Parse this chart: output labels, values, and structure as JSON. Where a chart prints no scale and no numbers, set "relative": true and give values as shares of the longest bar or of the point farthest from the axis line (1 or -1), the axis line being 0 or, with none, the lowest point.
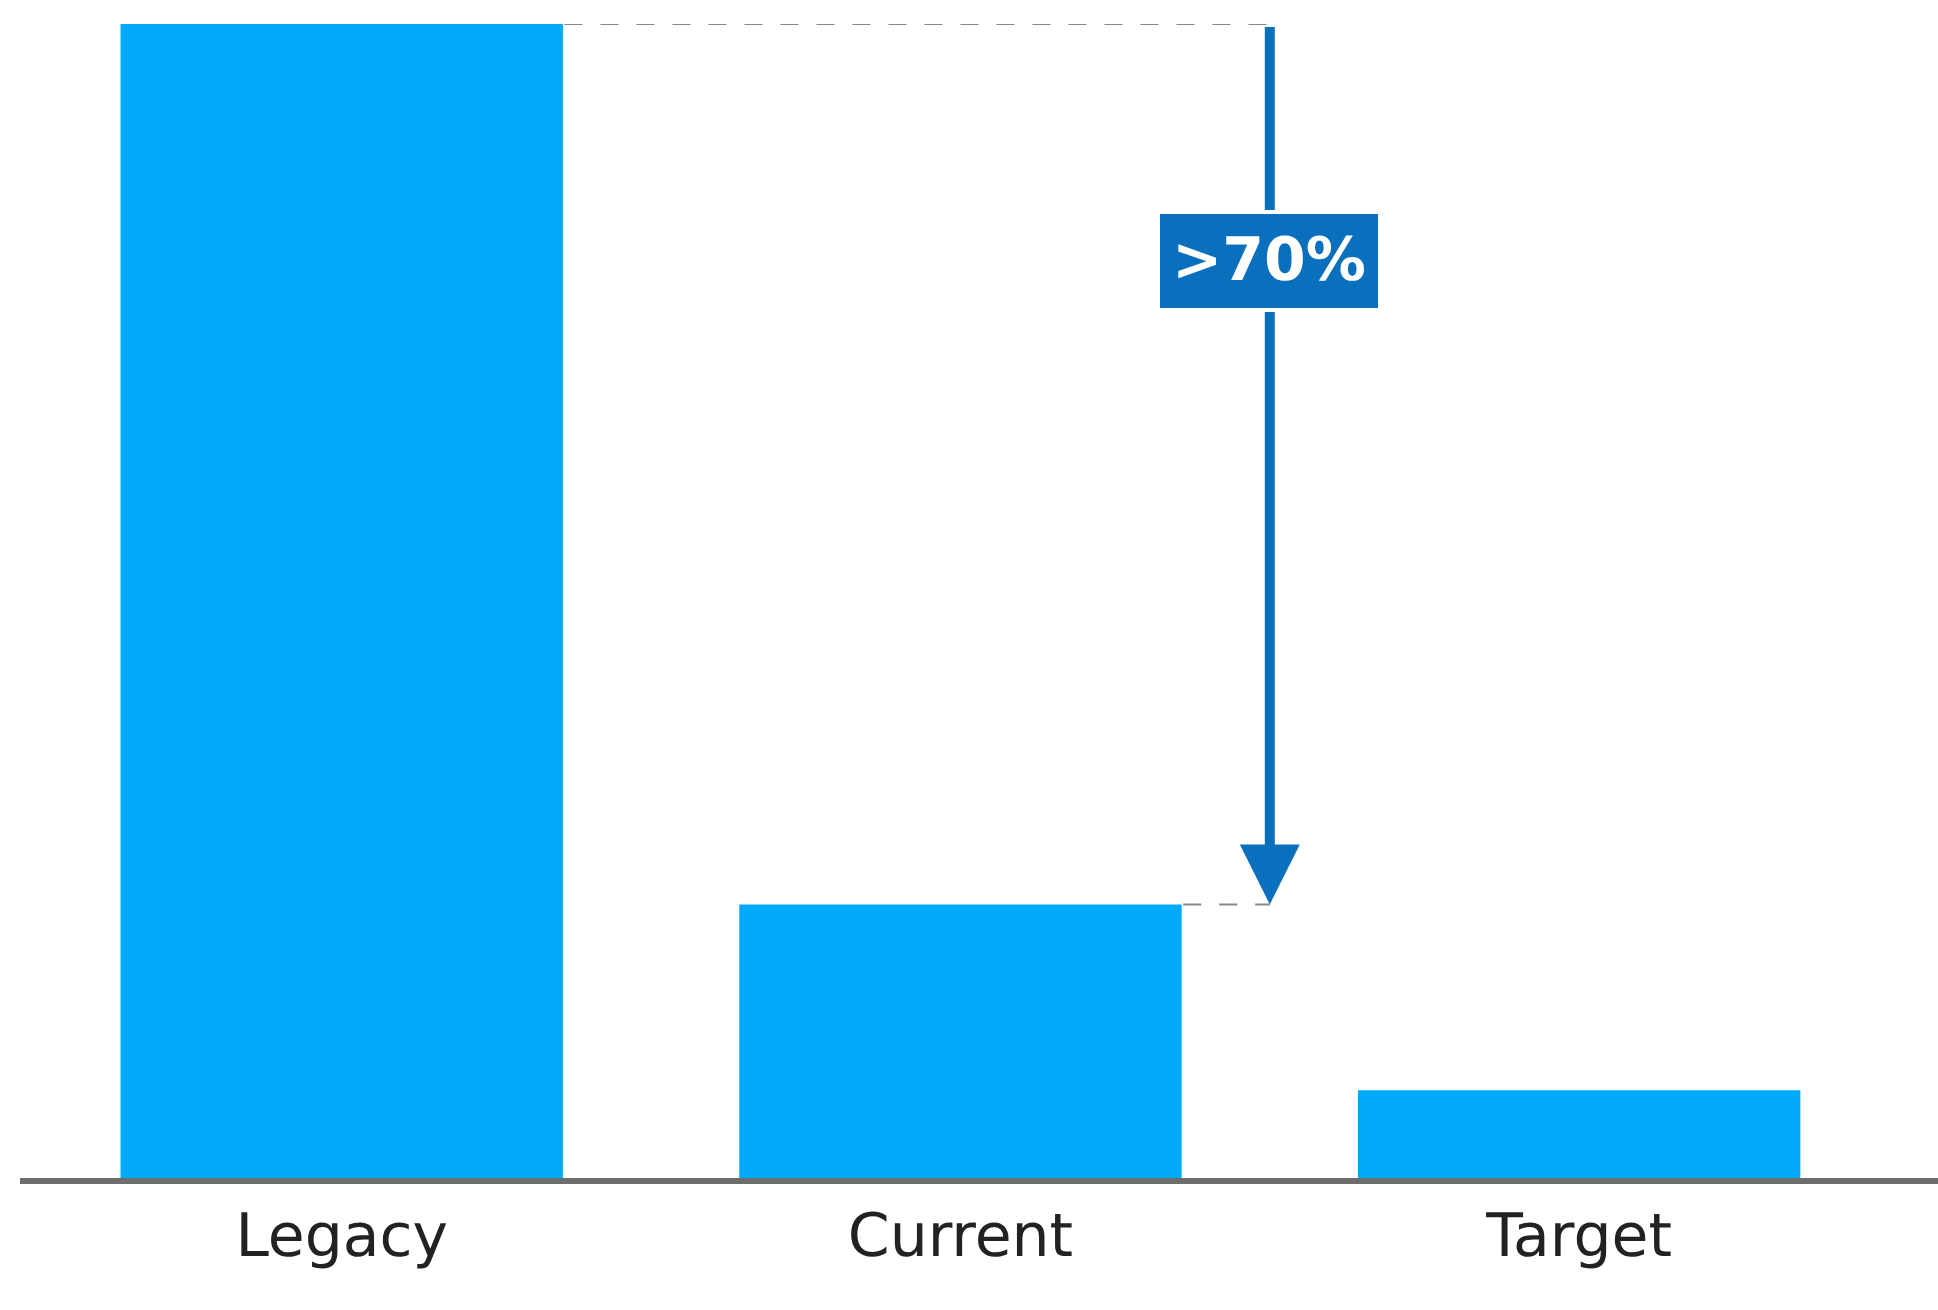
{
  "chart_data": {
    "type": "bar",
    "relative": true,
    "categories": [
      "Legacy",
      "Current",
      "Target"
    ],
    "values": [
      1,
      0.237,
      0.076
    ],
    "color": "#00aaf8",
    "annotations": [
      ">70%"
    ]
  }
}
